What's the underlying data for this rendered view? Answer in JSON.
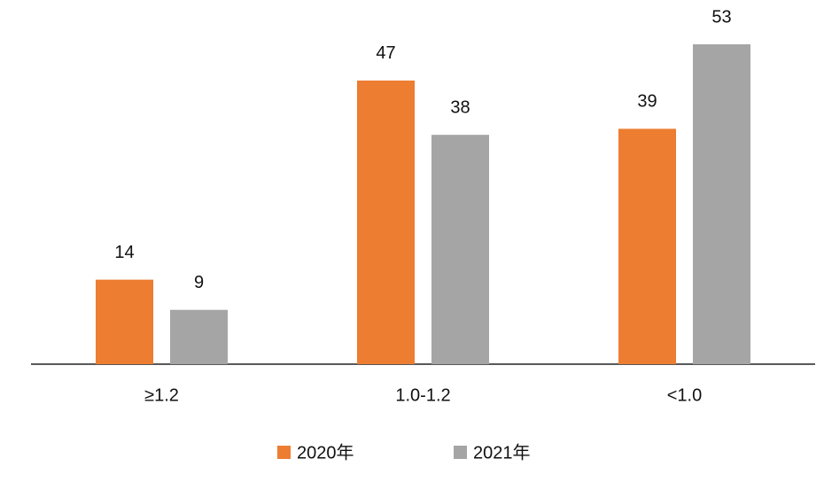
{
  "chart_data": {
    "type": "bar",
    "categories": [
      "≥1.2",
      "1.0-1.2",
      "<1.0"
    ],
    "series": [
      {
        "name": "2020年",
        "color": "#ed7d31",
        "values": [
          14,
          47,
          39
        ]
      },
      {
        "name": "2021年",
        "color": "#a5a5a5",
        "values": [
          9,
          38,
          53
        ]
      }
    ]
  }
}
